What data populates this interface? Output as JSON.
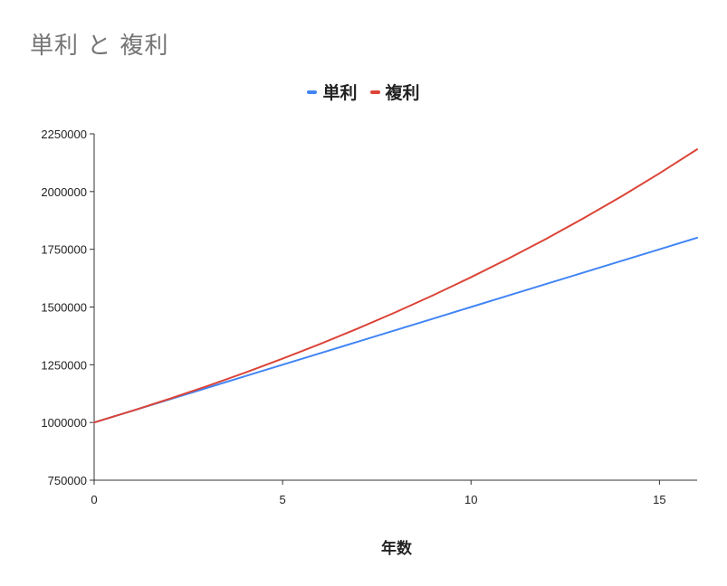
{
  "chart_data": {
    "type": "line",
    "title": "単利 と 複利",
    "xlabel": "年数",
    "ylabel": "",
    "x": [
      0,
      1,
      2,
      3,
      4,
      5,
      6,
      7,
      8,
      9,
      10,
      11,
      12,
      13,
      14,
      15,
      16
    ],
    "xlim": [
      0,
      16
    ],
    "ylim": [
      750000,
      2250000
    ],
    "x_ticks": [
      "0",
      "5",
      "10",
      "15"
    ],
    "y_ticks": [
      "750000",
      "1000000",
      "1250000",
      "1500000",
      "1750000",
      "2000000",
      "2250000"
    ],
    "grid": false,
    "legend_position": "top",
    "series": [
      {
        "name": "単利",
        "color": "#4285f4",
        "values": [
          1000000,
          1050000,
          1100000,
          1150000,
          1200000,
          1250000,
          1300000,
          1350000,
          1400000,
          1450000,
          1500000,
          1550000,
          1600000,
          1650000,
          1700000,
          1750000,
          1800000
        ]
      },
      {
        "name": "複利",
        "color": "#db4437",
        "values": [
          1000000,
          1050000,
          1102500,
          1157625,
          1215506,
          1276282,
          1340096,
          1407100,
          1477455,
          1551328,
          1628895,
          1710339,
          1795856,
          1885649,
          1979932,
          2078928,
          2182875
        ]
      }
    ]
  }
}
